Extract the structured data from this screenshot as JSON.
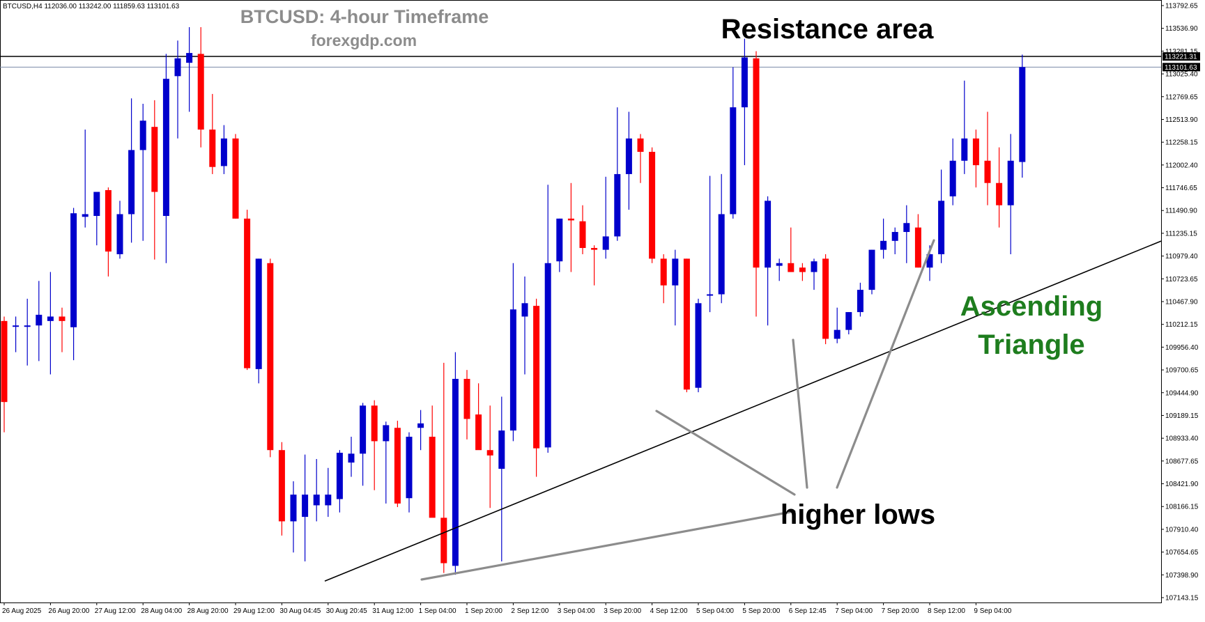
{
  "header": {
    "symbol_info": "BTCUSD,H4  112036.00 113242.00 111859.63 113101.63",
    "title_line1": "BTCUSD: 4-hour Timeframe",
    "title_line2": "forexgdp.com"
  },
  "annotations": {
    "resistance": "Resistance area",
    "pattern_line1": "Ascending",
    "pattern_line2": "Triangle",
    "higher_lows": "higher lows"
  },
  "colors": {
    "bull": "#0000cc",
    "bear": "#ff0000",
    "title_gray": "#8c8c8c",
    "pattern_green": "#1e7d1e",
    "callout_gray": "#8c8c8c"
  },
  "chart_data": {
    "type": "candlestick",
    "symbol": "BTCUSD",
    "timeframe": "H4",
    "ohlc_header": {
      "open": 112036.0,
      "high": 113242.0,
      "low": 111859.63,
      "close": 113101.63
    },
    "ylim": [
      107200,
      113900
    ],
    "y_ticks": [
      "113792.65",
      "113536.90",
      "113281.15",
      "113025.40",
      "112769.65",
      "112513.90",
      "112258.15",
      "112002.40",
      "111746.65",
      "111490.90",
      "111235.15",
      "110979.40",
      "110723.65",
      "110467.90",
      "110212.15",
      "109956.40",
      "109700.65",
      "109444.90",
      "109189.15",
      "108933.40",
      "108677.65",
      "108421.90",
      "108166.15",
      "107910.40",
      "107654.65",
      "107398.90",
      "107143.15"
    ],
    "x_ticks": [
      "26 Aug 2025",
      "26 Aug 20:00",
      "27 Aug 12:00",
      "28 Aug 04:00",
      "28 Aug 20:00",
      "29 Aug 12:00",
      "30 Aug 04:45",
      "30 Aug 20:45",
      "31 Aug 12:00",
      "1 Sep 04:00",
      "1 Sep 20:00",
      "2 Sep 12:00",
      "3 Sep 04:00",
      "3 Sep 20:00",
      "4 Sep 12:00",
      "5 Sep 04:00",
      "5 Sep 20:00",
      "6 Sep 12:45",
      "7 Sep 04:00",
      "7 Sep 20:00",
      "8 Sep 12:00",
      "9 Sep 04:00"
    ],
    "price_labels": {
      "resistance": {
        "value": 113221.31,
        "label": "113221.31"
      },
      "current": {
        "value": 113101.63,
        "label": "113101.63"
      }
    },
    "trendline": {
      "start": {
        "candle": 30,
        "price": 107450
      },
      "end": {
        "candle": 92,
        "price": 110725
      }
    },
    "candles": [
      {
        "o": 110250,
        "h": 110300,
        "l": 109000,
        "c": 109340
      },
      {
        "o": 110200,
        "h": 110300,
        "l": 109900,
        "c": 110200
      },
      {
        "o": 110200,
        "h": 110500,
        "l": 109750,
        "c": 110200
      },
      {
        "o": 110200,
        "h": 110700,
        "l": 109800,
        "c": 110320
      },
      {
        "o": 110250,
        "h": 110800,
        "l": 109650,
        "c": 110300
      },
      {
        "o": 110300,
        "h": 110400,
        "l": 109900,
        "c": 110250
      },
      {
        "o": 110180,
        "h": 111520,
        "l": 109810,
        "c": 111460
      },
      {
        "o": 111420,
        "h": 112400,
        "l": 111300,
        "c": 111450
      },
      {
        "o": 111430,
        "h": 111700,
        "l": 111100,
        "c": 111700
      },
      {
        "o": 111720,
        "h": 111750,
        "l": 110750,
        "c": 111030
      },
      {
        "o": 111000,
        "h": 111600,
        "l": 110950,
        "c": 111450
      },
      {
        "o": 111450,
        "h": 112750,
        "l": 111130,
        "c": 112170
      },
      {
        "o": 112170,
        "h": 112690,
        "l": 111150,
        "c": 112500
      },
      {
        "o": 112430,
        "h": 112730,
        "l": 110940,
        "c": 111700
      },
      {
        "o": 111430,
        "h": 113250,
        "l": 110900,
        "c": 112970
      },
      {
        "o": 113000,
        "h": 113400,
        "l": 112300,
        "c": 113200
      },
      {
        "o": 113150,
        "h": 113550,
        "l": 112600,
        "c": 113260
      },
      {
        "o": 113250,
        "h": 113550,
        "l": 112200,
        "c": 112400
      },
      {
        "o": 112400,
        "h": 112800,
        "l": 111900,
        "c": 111980
      },
      {
        "o": 111990,
        "h": 112450,
        "l": 111900,
        "c": 112300
      },
      {
        "o": 112300,
        "h": 112350,
        "l": 111400,
        "c": 111400
      },
      {
        "o": 111400,
        "h": 111500,
        "l": 109700,
        "c": 109720
      },
      {
        "o": 109710,
        "h": 110950,
        "l": 109550,
        "c": 110950
      },
      {
        "o": 110900,
        "h": 110950,
        "l": 108720,
        "c": 108800
      },
      {
        "o": 108800,
        "h": 108890,
        "l": 107840,
        "c": 108000
      },
      {
        "o": 108000,
        "h": 108450,
        "l": 107650,
        "c": 108300
      },
      {
        "o": 108050,
        "h": 108750,
        "l": 107550,
        "c": 108300
      },
      {
        "o": 108180,
        "h": 108700,
        "l": 108000,
        "c": 108300
      },
      {
        "o": 108180,
        "h": 108600,
        "l": 108050,
        "c": 108300
      },
      {
        "o": 108250,
        "h": 108800,
        "l": 108100,
        "c": 108770
      },
      {
        "o": 108660,
        "h": 108950,
        "l": 108500,
        "c": 108760
      },
      {
        "o": 108760,
        "h": 109330,
        "l": 108400,
        "c": 109300
      },
      {
        "o": 109300,
        "h": 109360,
        "l": 108350,
        "c": 108900
      },
      {
        "o": 108900,
        "h": 109120,
        "l": 108200,
        "c": 109080
      },
      {
        "o": 109050,
        "h": 109130,
        "l": 108160,
        "c": 108200
      },
      {
        "o": 108260,
        "h": 109000,
        "l": 108100,
        "c": 108950
      },
      {
        "o": 109050,
        "h": 109250,
        "l": 108800,
        "c": 109100
      },
      {
        "o": 108950,
        "h": 109300,
        "l": 108100,
        "c": 108040
      },
      {
        "o": 108040,
        "h": 109780,
        "l": 107420,
        "c": 107530
      },
      {
        "o": 107500,
        "h": 109900,
        "l": 107400,
        "c": 109600
      },
      {
        "o": 109600,
        "h": 109700,
        "l": 108920,
        "c": 109150
      },
      {
        "o": 109200,
        "h": 109550,
        "l": 108830,
        "c": 108800
      },
      {
        "o": 108800,
        "h": 109300,
        "l": 108150,
        "c": 108740
      },
      {
        "o": 108590,
        "h": 109400,
        "l": 107550,
        "c": 109020
      },
      {
        "o": 109020,
        "h": 110900,
        "l": 108900,
        "c": 110380
      },
      {
        "o": 110300,
        "h": 110750,
        "l": 109650,
        "c": 110450
      },
      {
        "o": 110420,
        "h": 110500,
        "l": 108500,
        "c": 108820
      },
      {
        "o": 108830,
        "h": 111780,
        "l": 108770,
        "c": 110900
      },
      {
        "o": 110920,
        "h": 111400,
        "l": 110800,
        "c": 111400
      },
      {
        "o": 111400,
        "h": 111800,
        "l": 110800,
        "c": 111380
      },
      {
        "o": 111370,
        "h": 111550,
        "l": 111000,
        "c": 111070
      },
      {
        "o": 111070,
        "h": 111100,
        "l": 110650,
        "c": 111050
      },
      {
        "o": 111050,
        "h": 111870,
        "l": 110950,
        "c": 111200
      },
      {
        "o": 111200,
        "h": 112650,
        "l": 111150,
        "c": 111900
      },
      {
        "o": 111900,
        "h": 112600,
        "l": 111500,
        "c": 112300
      },
      {
        "o": 112300,
        "h": 112350,
        "l": 111800,
        "c": 112150
      },
      {
        "o": 112150,
        "h": 112200,
        "l": 110900,
        "c": 110950
      },
      {
        "o": 110950,
        "h": 111000,
        "l": 110450,
        "c": 110650
      },
      {
        "o": 110650,
        "h": 111050,
        "l": 110200,
        "c": 110950
      },
      {
        "o": 110950,
        "h": 110950,
        "l": 109450,
        "c": 109480
      },
      {
        "o": 109500,
        "h": 110500,
        "l": 109450,
        "c": 110450
      },
      {
        "o": 110550,
        "h": 111880,
        "l": 110350,
        "c": 110550
      },
      {
        "o": 110550,
        "h": 111900,
        "l": 110450,
        "c": 111450
      },
      {
        "o": 111450,
        "h": 113100,
        "l": 111400,
        "c": 112650
      },
      {
        "o": 112650,
        "h": 113420,
        "l": 112000,
        "c": 113210
      },
      {
        "o": 113200,
        "h": 113280,
        "l": 110300,
        "c": 110850
      },
      {
        "o": 110850,
        "h": 111650,
        "l": 110200,
        "c": 111600
      },
      {
        "o": 110870,
        "h": 110950,
        "l": 110700,
        "c": 110900
      },
      {
        "o": 110900,
        "h": 111300,
        "l": 110800,
        "c": 110800
      },
      {
        "o": 110850,
        "h": 110900,
        "l": 110700,
        "c": 110800
      },
      {
        "o": 110800,
        "h": 110950,
        "l": 110600,
        "c": 110920
      },
      {
        "o": 110950,
        "h": 111000,
        "l": 109990,
        "c": 110050
      },
      {
        "o": 110050,
        "h": 110400,
        "l": 110000,
        "c": 110150
      },
      {
        "o": 110150,
        "h": 110350,
        "l": 110100,
        "c": 110350
      },
      {
        "o": 110350,
        "h": 110680,
        "l": 110300,
        "c": 110600
      },
      {
        "o": 110600,
        "h": 111050,
        "l": 110550,
        "c": 111050
      },
      {
        "o": 111050,
        "h": 111400,
        "l": 110950,
        "c": 111150
      },
      {
        "o": 111150,
        "h": 111300,
        "l": 111000,
        "c": 111250
      },
      {
        "o": 111250,
        "h": 111550,
        "l": 110900,
        "c": 111350
      },
      {
        "o": 111300,
        "h": 111450,
        "l": 110850,
        "c": 110850
      },
      {
        "o": 110850,
        "h": 111100,
        "l": 110700,
        "c": 111000
      },
      {
        "o": 111000,
        "h": 111950,
        "l": 110900,
        "c": 111600
      },
      {
        "o": 111650,
        "h": 112300,
        "l": 111550,
        "c": 112050
      },
      {
        "o": 112050,
        "h": 112950,
        "l": 111900,
        "c": 112300
      },
      {
        "o": 112300,
        "h": 112400,
        "l": 111750,
        "c": 112000
      },
      {
        "o": 112050,
        "h": 112600,
        "l": 111550,
        "c": 111800
      },
      {
        "o": 111800,
        "h": 112200,
        "l": 111300,
        "c": 111550
      },
      {
        "o": 111550,
        "h": 112350,
        "l": 111000,
        "c": 112050
      },
      {
        "o": 112036,
        "h": 113242,
        "l": 111860,
        "c": 113102
      }
    ]
  }
}
